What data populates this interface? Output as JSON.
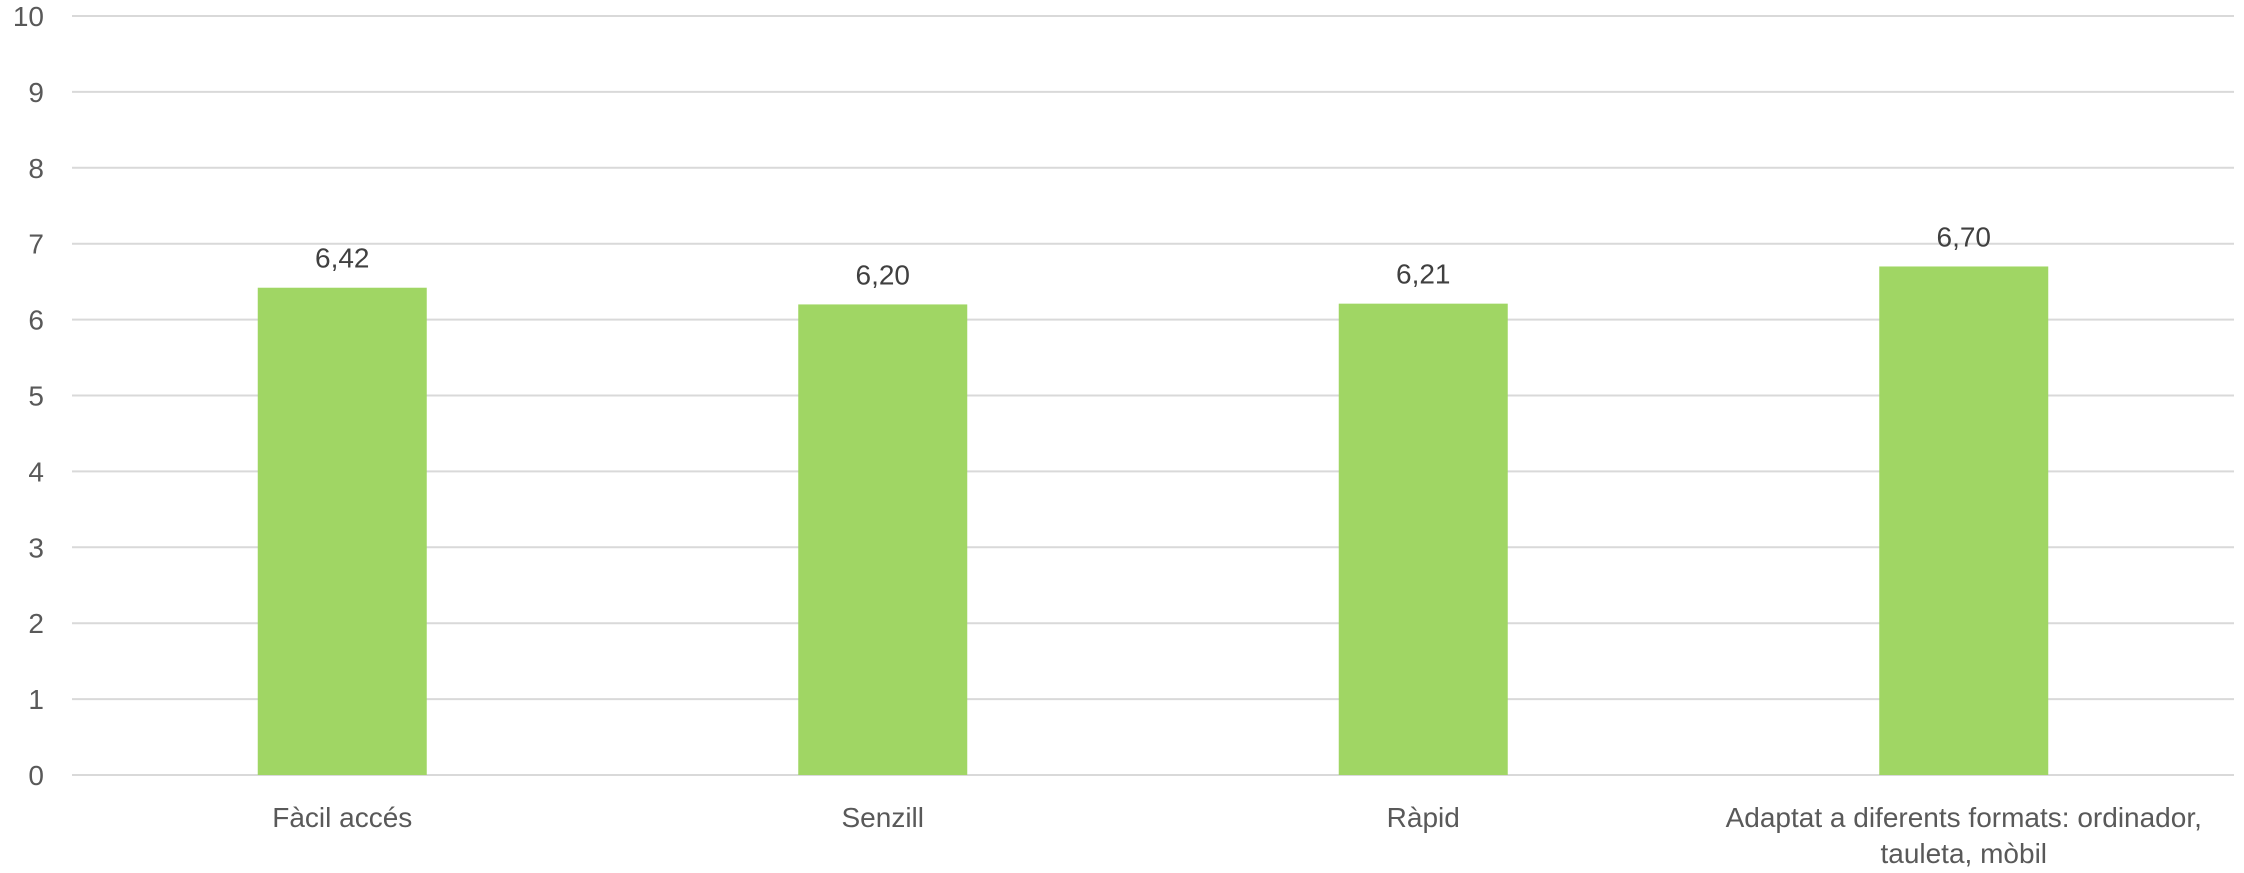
{
  "chart_data": {
    "type": "bar",
    "categories": [
      [
        "Fàcil accés"
      ],
      [
        "Senzill"
      ],
      [
        "Ràpid"
      ],
      [
        "Adaptat a diferents formats: ordinador,",
        "tauleta, mòbil"
      ]
    ],
    "values": [
      6.42,
      6.2,
      6.21,
      6.7
    ],
    "data_labels": [
      "6,42",
      "6,20",
      "6,21",
      "6,70"
    ],
    "ylim": [
      0,
      10
    ],
    "y_ticks": [
      0,
      1,
      2,
      3,
      4,
      5,
      6,
      7,
      8,
      9,
      10
    ],
    "y_tick_labels": [
      "0",
      "1",
      "2",
      "3",
      "4",
      "5",
      "6",
      "7",
      "8",
      "9",
      "10"
    ],
    "grid": true,
    "legend": "none",
    "title": "",
    "xlabel": "",
    "ylabel": "",
    "colors": {
      "bar": "#a0d664",
      "grid": "#d9d9d9",
      "axis_text": "#595959",
      "data_label": "#404040"
    }
  }
}
